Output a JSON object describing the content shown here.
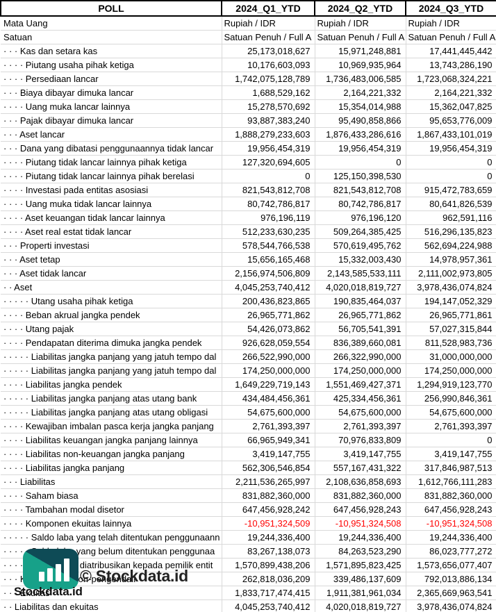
{
  "table": {
    "header": {
      "label_col": "POLL",
      "periods": [
        "2024_Q1_YTD",
        "2024_Q2_YTD",
        "2024_Q3_YTD"
      ]
    },
    "meta_rows": [
      {
        "label": "Mata Uang",
        "values": [
          "Rupiah / IDR",
          "Rupiah / IDR",
          "Rupiah / IDR"
        ]
      },
      {
        "label": "Satuan",
        "values": [
          "Satuan Penuh / Full A",
          "Satuan Penuh / Full A",
          "Satuan Penuh / Full A"
        ]
      }
    ],
    "rows": [
      {
        "dots": 3,
        "label": "Kas dan setara kas",
        "values": [
          "25,173,018,627",
          "15,971,248,881",
          "17,441,445,442"
        ]
      },
      {
        "dots": 4,
        "label": "Piutang usaha pihak ketiga",
        "values": [
          "10,176,603,093",
          "10,969,935,964",
          "13,743,286,190"
        ]
      },
      {
        "dots": 4,
        "label": "Persediaan lancar",
        "values": [
          "1,742,075,128,789",
          "1,736,483,006,585",
          "1,723,068,324,221"
        ]
      },
      {
        "dots": 3,
        "label": "Biaya dibayar dimuka lancar",
        "values": [
          "1,688,529,162",
          "2,164,221,332",
          "2,164,221,332"
        ]
      },
      {
        "dots": 4,
        "label": "Uang muka lancar lainnya",
        "values": [
          "15,278,570,692",
          "15,354,014,988",
          "15,362,047,825"
        ]
      },
      {
        "dots": 3,
        "label": "Pajak dibayar dimuka lancar",
        "values": [
          "93,887,383,240",
          "95,490,858,866",
          "95,653,776,009"
        ]
      },
      {
        "dots": 3,
        "label": "Aset lancar",
        "values": [
          "1,888,279,233,603",
          "1,876,433,286,616",
          "1,867,433,101,019"
        ]
      },
      {
        "dots": 3,
        "label": "Dana yang dibatasi penggunaannya tidak lancar",
        "values": [
          "19,956,454,319",
          "19,956,454,319",
          "19,956,454,319"
        ]
      },
      {
        "dots": 4,
        "label": "Piutang tidak lancar lainnya pihak ketiga",
        "values": [
          "127,320,694,605",
          "0",
          "0"
        ]
      },
      {
        "dots": 4,
        "label": "Piutang tidak lancar lainnya pihak berelasi",
        "values": [
          "0",
          "125,150,398,530",
          "0"
        ]
      },
      {
        "dots": 4,
        "label": "Investasi pada entitas asosiasi",
        "values": [
          "821,543,812,708",
          "821,543,812,708",
          "915,472,783,659"
        ]
      },
      {
        "dots": 4,
        "label": "Uang muka tidak lancar lainnya",
        "values": [
          "80,742,786,817",
          "80,742,786,817",
          "80,641,826,539"
        ]
      },
      {
        "dots": 4,
        "label": "Aset keuangan tidak lancar lainnya",
        "values": [
          "976,196,119",
          "976,196,120",
          "962,591,116"
        ]
      },
      {
        "dots": 4,
        "label": "Aset real estat tidak lancar",
        "values": [
          "512,233,630,235",
          "509,264,385,425",
          "516,296,135,823"
        ]
      },
      {
        "dots": 3,
        "label": "Properti investasi",
        "values": [
          "578,544,766,538",
          "570,619,495,762",
          "562,694,224,988"
        ]
      },
      {
        "dots": 3,
        "label": "Aset tetap",
        "values": [
          "15,656,165,468",
          "15,332,003,430",
          "14,978,957,361"
        ]
      },
      {
        "dots": 3,
        "label": "Aset tidak lancar",
        "values": [
          "2,156,974,506,809",
          "2,143,585,533,111",
          "2,111,002,973,805"
        ]
      },
      {
        "dots": 2,
        "label": "Aset",
        "values": [
          "4,045,253,740,412",
          "4,020,018,819,727",
          "3,978,436,074,824"
        ]
      },
      {
        "dots": 5,
        "label": "Utang usaha pihak ketiga",
        "values": [
          "200,436,823,865",
          "190,835,464,037",
          "194,147,052,329"
        ]
      },
      {
        "dots": 4,
        "label": "Beban akrual jangka pendek",
        "values": [
          "26,965,771,862",
          "26,965,771,862",
          "26,965,771,861"
        ]
      },
      {
        "dots": 4,
        "label": "Utang pajak",
        "values": [
          "54,426,073,862",
          "56,705,541,391",
          "57,027,315,844"
        ]
      },
      {
        "dots": 4,
        "label": "Pendapatan diterima dimuka jangka pendek",
        "values": [
          "926,628,059,554",
          "836,389,660,081",
          "811,528,983,736"
        ]
      },
      {
        "dots": 5,
        "label": "Liabilitas jangka panjang yang jatuh tempo dal",
        "values": [
          "266,522,990,000",
          "266,322,990,000",
          "31,000,000,000"
        ]
      },
      {
        "dots": 5,
        "label": "Liabilitas jangka panjang yang jatuh tempo dal",
        "values": [
          "174,250,000,000",
          "174,250,000,000",
          "174,250,000,000"
        ]
      },
      {
        "dots": 4,
        "label": "Liabilitas jangka pendek",
        "values": [
          "1,649,229,719,143",
          "1,551,469,427,371",
          "1,294,919,123,770"
        ]
      },
      {
        "dots": 5,
        "label": "Liabilitas jangka panjang atas utang bank",
        "values": [
          "434,484,456,361",
          "425,334,456,361",
          "256,990,846,361"
        ]
      },
      {
        "dots": 5,
        "label": "Liabilitas jangka panjang atas utang obligasi",
        "values": [
          "54,675,600,000",
          "54,675,600,000",
          "54,675,600,000"
        ]
      },
      {
        "dots": 4,
        "label": "Kewajiban imbalan pasca kerja jangka panjang",
        "values": [
          "2,761,393,397",
          "2,761,393,397",
          "2,761,393,397"
        ]
      },
      {
        "dots": 4,
        "label": "Liabilitas keuangan jangka panjang lainnya",
        "values": [
          "66,965,949,341",
          "70,976,833,809",
          "0"
        ]
      },
      {
        "dots": 4,
        "label": "Liabilitas non-keuangan jangka panjang",
        "values": [
          "3,419,147,755",
          "3,419,147,755",
          "3,419,147,755"
        ]
      },
      {
        "dots": 4,
        "label": "Liabilitas jangka panjang",
        "values": [
          "562,306,546,854",
          "557,167,431,322",
          "317,846,987,513"
        ]
      },
      {
        "dots": 3,
        "label": "Liabilitas",
        "values": [
          "2,211,536,265,997",
          "2,108,636,858,693",
          "1,612,766,111,283"
        ]
      },
      {
        "dots": 4,
        "label": "Saham biasa",
        "values": [
          "831,882,360,000",
          "831,882,360,000",
          "831,882,360,000"
        ]
      },
      {
        "dots": 4,
        "label": "Tambahan modal disetor",
        "values": [
          "647,456,928,242",
          "647,456,928,243",
          "647,456,928,243"
        ]
      },
      {
        "dots": 4,
        "label": "Komponen ekuitas lainnya",
        "values": [
          "-10,951,324,509",
          "-10,951,324,508",
          "-10,951,324,508"
        ]
      },
      {
        "dots": 5,
        "label": "Saldo laba yang telah ditentukan penggunaann",
        "values": [
          "19,244,336,400",
          "19,244,336,400",
          "19,244,336,400"
        ]
      },
      {
        "dots": 5,
        "label": "Saldo laba yang belum ditentukan penggunaa",
        "values": [
          "83,267,138,073",
          "84,263,523,290",
          "86,023,777,272"
        ]
      },
      {
        "dots": 4,
        "label": "Ekuitas yang diatribusikan kepada pemilik entit",
        "values": [
          "1,570,899,438,206",
          "1,571,895,823,425",
          "1,573,656,077,407"
        ]
      },
      {
        "dots": 3,
        "label": "Kepentingan non-pengendali",
        "values": [
          "262,818,036,209",
          "339,486,137,609",
          "792,013,886,134"
        ]
      },
      {
        "dots": 3,
        "label": "Ekuitas",
        "values": [
          "1,833,717,474,415",
          "1,911,381,961,034",
          "2,365,669,963,541"
        ]
      },
      {
        "dots": 2,
        "label": "Liabilitas dan ekuitas",
        "values": [
          "4,045,253,740,412",
          "4,020,018,819,727",
          "3,978,436,074,824"
        ]
      }
    ]
  },
  "watermark": {
    "big_text": "© Stockdata.id",
    "small_text": "Stockdata.id",
    "logo_icon": "bar-chart-icon"
  },
  "colors": {
    "negative_value": "#ff0000",
    "gridline": "#d9d9d9",
    "header_border": "#000000",
    "logo_dark_teal": "#0e4b56",
    "logo_green": "#17a189"
  }
}
